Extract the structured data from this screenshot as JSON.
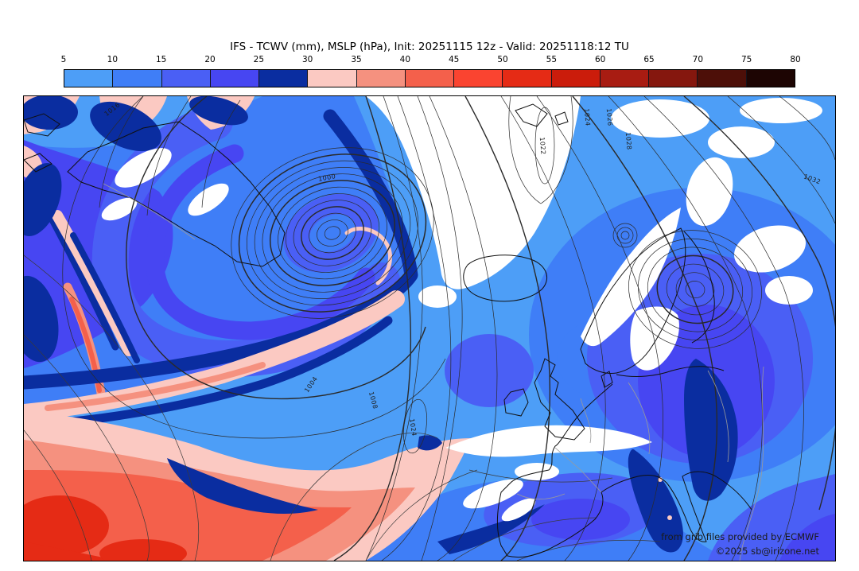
{
  "title": "IFS - TCWV (mm), MSLP (hPa), Init: 20251115 12z - Valid: 20251118:12 TU",
  "model": "IFS",
  "fields": "TCWV (mm), MSLP (hPa)",
  "init": "20251115 12z",
  "valid": "20251118:12 TU",
  "colorbar": {
    "ticks": [
      "5",
      "10",
      "15",
      "20",
      "25",
      "30",
      "35",
      "40",
      "45",
      "50",
      "55",
      "60",
      "65",
      "70",
      "75",
      "80"
    ],
    "segments": [
      {
        "range": "5-10",
        "color": "#4d9ef7"
      },
      {
        "range": "10-15",
        "color": "#3f7ef7"
      },
      {
        "range": "15-20",
        "color": "#4a5ff5"
      },
      {
        "range": "20-25",
        "color": "#4746f2"
      },
      {
        "range": "25-30",
        "color": "#0a2da0"
      },
      {
        "range": "30-35",
        "color": "#fbc9c2"
      },
      {
        "range": "35-40",
        "color": "#f5917f"
      },
      {
        "range": "40-45",
        "color": "#f4604b"
      },
      {
        "range": "45-50",
        "color": "#fa4430"
      },
      {
        "range": "50-55",
        "color": "#e52b15"
      },
      {
        "range": "55-60",
        "color": "#cb1c0b"
      },
      {
        "range": "60-65",
        "color": "#a81c12"
      },
      {
        "range": "65-70",
        "color": "#85170e"
      },
      {
        "range": "70-75",
        "color": "#4d0f08"
      },
      {
        "range": "75-80",
        "color": "#1d0503"
      }
    ]
  },
  "map": {
    "contour_labels": [
      "1016",
      "1000",
      "1022",
      "1024",
      "1026",
      "1028",
      "1032",
      "1004",
      "1008",
      "1024"
    ],
    "attribution_line1": "from grib files provided by ECMWF",
    "attribution_line2": "©2025 sb@irizone.net"
  }
}
